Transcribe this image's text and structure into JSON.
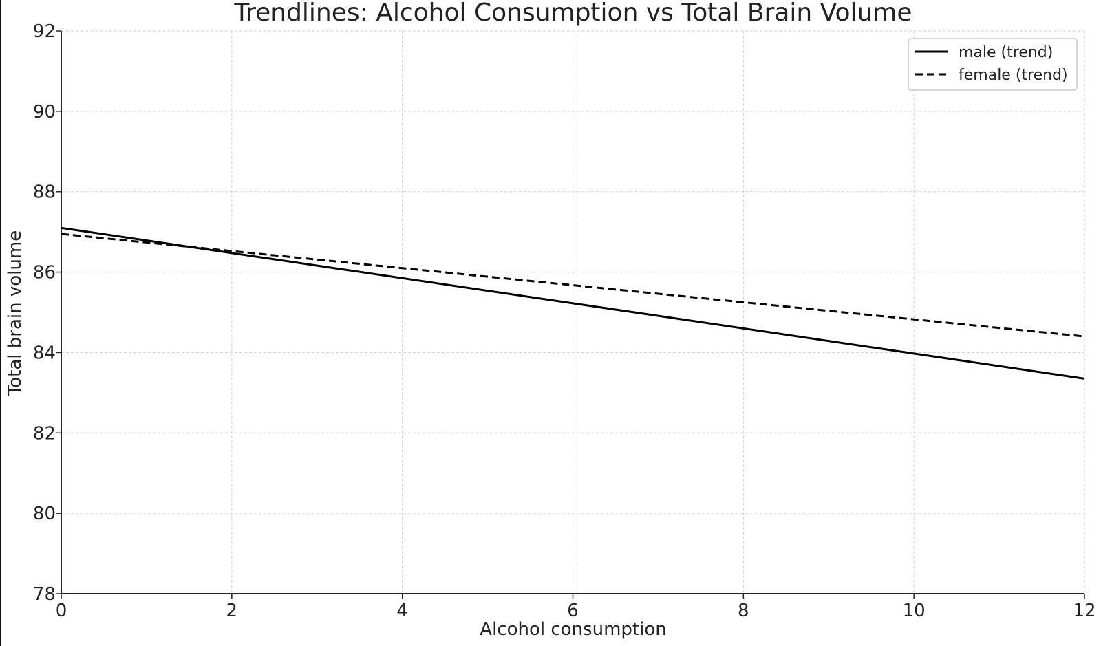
{
  "chart_data": {
    "type": "line",
    "title": "Trendlines: Alcohol Consumption vs Total Brain Volume",
    "xlabel": "Alcohol consumption",
    "ylabel": "Total brain volume",
    "xlim": [
      0,
      12
    ],
    "ylim": [
      78,
      92
    ],
    "xticks": [
      0,
      2,
      4,
      6,
      8,
      10,
      12
    ],
    "yticks": [
      78,
      80,
      82,
      84,
      86,
      88,
      90,
      92
    ],
    "grid": true,
    "legend_placement": "top-right",
    "series": [
      {
        "name": "male (trend)",
        "style": "solid",
        "color": "#000000",
        "x": [
          0,
          12
        ],
        "y": [
          87.1,
          83.35
        ]
      },
      {
        "name": "female (trend)",
        "style": "dashed",
        "color": "#000000",
        "x": [
          0,
          12
        ],
        "y": [
          86.95,
          84.4
        ]
      }
    ]
  }
}
